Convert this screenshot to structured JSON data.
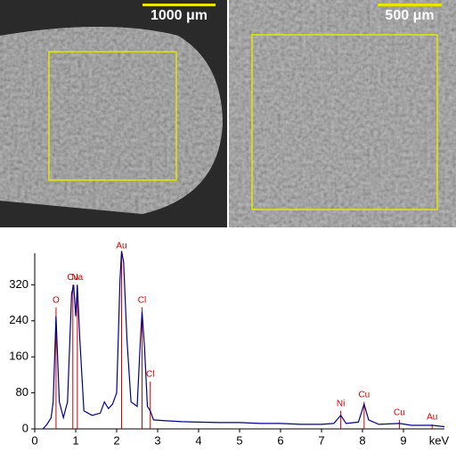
{
  "images": {
    "left_scale": "1000 μm",
    "right_scale": "500 μm"
  },
  "chart_data": {
    "type": "line",
    "x_label": "keV",
    "color": "#00008b",
    "marker_color": "#cc0000",
    "x": [
      0.2,
      0.3,
      0.4,
      0.45,
      0.52,
      0.6,
      0.7,
      0.8,
      0.9,
      0.95,
      1.0,
      1.04,
      1.1,
      1.2,
      1.4,
      1.6,
      1.7,
      1.8,
      1.9,
      2.0,
      2.08,
      2.12,
      2.17,
      2.25,
      2.35,
      2.5,
      2.58,
      2.62,
      2.68,
      2.75,
      2.82,
      2.9,
      3.2,
      3.6,
      4.0,
      4.5,
      5.0,
      5.5,
      6.0,
      6.5,
      7.0,
      7.3,
      7.47,
      7.6,
      7.9,
      8.04,
      8.15,
      8.4,
      8.9,
      9.2,
      9.7,
      10
    ],
    "values": [
      0,
      10,
      25,
      60,
      250,
      60,
      25,
      60,
      300,
      320,
      250,
      320,
      200,
      40,
      30,
      35,
      60,
      45,
      55,
      80,
      330,
      395,
      370,
      200,
      60,
      50,
      200,
      260,
      180,
      50,
      40,
      20,
      18,
      16,
      15,
      14,
      14,
      12,
      12,
      10,
      10,
      12,
      30,
      12,
      15,
      55,
      20,
      10,
      12,
      8,
      8,
      5
    ],
    "markers": [
      {
        "label": "O",
        "energy": 0.52,
        "height": 270
      },
      {
        "label": "Cu",
        "energy": 0.93,
        "height": 320
      },
      {
        "label": "Na",
        "energy": 1.04,
        "height": 320
      },
      {
        "label": "Au",
        "energy": 2.12,
        "height": 390
      },
      {
        "label": "Cl",
        "energy": 2.62,
        "height": 270
      },
      {
        "label": "Cl",
        "energy": 2.82,
        "height": 105
      },
      {
        "label": "Ni",
        "energy": 7.47,
        "height": 40
      },
      {
        "label": "Cu",
        "energy": 8.04,
        "height": 60
      },
      {
        "label": "Cu",
        "energy": 8.9,
        "height": 20
      },
      {
        "label": "Au",
        "energy": 9.7,
        "height": 10
      }
    ],
    "xlim": [
      0,
      10
    ],
    "ylim": [
      0,
      390
    ],
    "xticks": [
      0,
      1,
      2,
      3,
      4,
      5,
      6,
      7,
      8,
      9
    ],
    "yticks": [
      0,
      80,
      160,
      240,
      320
    ]
  }
}
